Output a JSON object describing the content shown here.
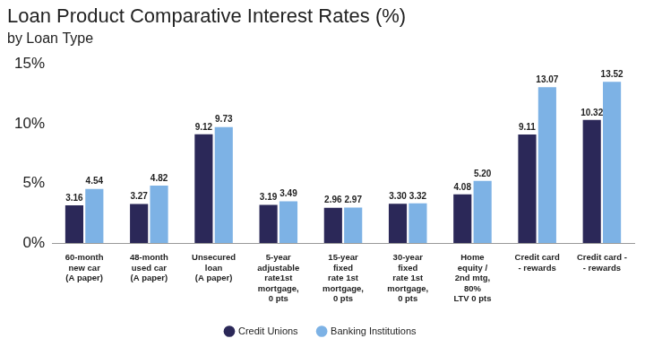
{
  "chart_data": {
    "type": "bar",
    "title": "Loan Product Comparative Interest Rates (%)",
    "subtitle": "by Loan Type",
    "categories": [
      "60-month\nnew car\n(A paper)",
      "48-month\nused car\n(A paper)",
      "Unsecured\nloan\n(A paper)",
      "5-year\nadjustable\nrate1st\nmortgage,\n0 pts",
      "15-year\nfixed\nrate 1st\nmortgage,\n0 pts",
      "30-year\nfixed\nrate 1st\nmortgage,\n0 pts",
      "Home\nequity /\n2nd mtg,\n80%\nLTV 0 pts",
      "Credit card\n- rewards",
      "Credit card -\n- rewards"
    ],
    "series": [
      {
        "name": "Credit Unions",
        "color": "#2b2858",
        "values": [
          3.16,
          3.27,
          9.12,
          3.19,
          2.96,
          3.3,
          4.08,
          9.11,
          10.32
        ],
        "value_labels": [
          "3.16",
          "3.27",
          "9.12",
          "3.19",
          "2.96",
          "3.30",
          "4.08",
          "9.11",
          "10.32"
        ]
      },
      {
        "name": "Banking Institutions",
        "color": "#7db2e5",
        "values": [
          4.54,
          4.82,
          9.73,
          3.49,
          2.97,
          3.32,
          5.2,
          13.07,
          13.52
        ],
        "value_labels": [
          "4.54",
          "4.82",
          "9.73",
          "3.49",
          "2.97",
          "3.32",
          "5.20",
          "13.07",
          "13.52"
        ]
      }
    ],
    "ylim": [
      0,
      15
    ],
    "yticks": [
      {
        "value": 0,
        "label": "0%"
      },
      {
        "value": 5,
        "label": "5%"
      },
      {
        "value": 10,
        "label": "10%"
      },
      {
        "value": 15,
        "label": "15%"
      }
    ],
    "grid": false,
    "legend": "bottom",
    "data_labels": true
  }
}
